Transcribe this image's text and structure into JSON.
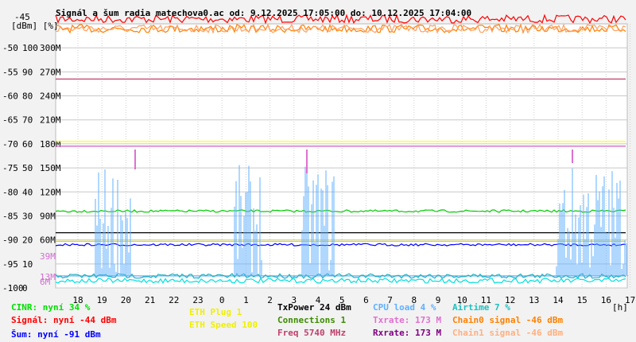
{
  "title": "Signál a šum radia matechova0.ac od: 9.12.2025 17:05:00 do: 10.12.2025 17:04:00",
  "chart_data": {
    "type": "line",
    "title": "Signál a šum radia matechova0.ac od: 9.12.2025 17:05:00 do: 10.12.2025 17:04:00",
    "xlabel": "[h]",
    "x_ticks": [
      "18",
      "19",
      "20",
      "21",
      "22",
      "23",
      "0",
      "1",
      "2",
      "3",
      "4",
      "5",
      "6",
      "7",
      "8",
      "9",
      "10",
      "11",
      "12",
      "13",
      "14",
      "15",
      "16",
      "17"
    ],
    "y_axis_headers": [
      "-45",
      "[dBm]",
      "[%]"
    ],
    "y_ticks_dbm": [
      "-50",
      "-55",
      "-60",
      "-65",
      "-70",
      "-75",
      "-80",
      "-85",
      "-90",
      "-95",
      "-100"
    ],
    "y_ticks_pct": [
      "100",
      "90",
      "80",
      "70",
      "60",
      "50",
      "40",
      "30",
      "20",
      "10",
      "0"
    ],
    "y_ticks_rate": [
      "300M",
      "270M",
      "240M",
      "210M",
      "180M",
      "150M",
      "120M",
      "90M",
      "60M"
    ],
    "y_ticks_extra": [
      "39M",
      "13M",
      "6M"
    ],
    "ylim_dbm": [
      -100,
      -45
    ],
    "grid": true,
    "series": [
      {
        "name": "Signál",
        "color": "#ff0000",
        "level_dbm": -44
      },
      {
        "name": "Chain0 signal",
        "color": "#ff8000",
        "level_dbm": -46
      },
      {
        "name": "Chain1 signal",
        "color": "#ffa060",
        "level_dbm": -46
      },
      {
        "name": "Freq",
        "color": "#c0406a",
        "level_dbm": -56.5
      },
      {
        "name": "Rxrate",
        "color": "#800080",
        "level_dbm": -70.5
      },
      {
        "name": "Txrate",
        "color": "#e070d0",
        "level_dbm": -70.5
      },
      {
        "name": "ETH Speed",
        "color": "#ffff00",
        "level_dbm": -69.5
      },
      {
        "name": "ETH Plug",
        "color": "#d8d800",
        "level_dbm": -90.3
      },
      {
        "name": "Connections",
        "color": "#00cc00",
        "level_dbm": -84
      },
      {
        "name": "TxPower",
        "color": "#000000",
        "level_dbm": -88.5
      },
      {
        "name": "Šum",
        "color": "#0000ff",
        "level_dbm": -91
      },
      {
        "name": "CPU load",
        "color": "#60b0ff",
        "level_dbm": -97.5
      },
      {
        "name": "CINR",
        "color": "#00e0e0",
        "level_dbm": -98.5
      },
      {
        "name": "Airtime",
        "color": "#20b0c0",
        "level_dbm": -97.5
      }
    ]
  },
  "legend": {
    "cinr": "CINR: nyní 34 %",
    "signal": "Signál: nyní -44 dBm",
    "sum": "Šum: nyní -91 dBm",
    "eth_plug": "ETH Plug 1",
    "eth_speed": "ETH Speed 100",
    "txpower": "TxPower 24 dBm",
    "connections": "Connections 1",
    "freq": "Freq 5740 MHz",
    "cpu": "CPU load 4 %",
    "txrate": "Txrate: 173 M",
    "rxrate": "Rxrate: 173 M",
    "airtime": "Airtime 7 %",
    "chain0": "Chain0 signal -46 dBm",
    "chain1": "Chain1 signal -46 dBm"
  },
  "colors": {
    "cinr": "#00e000",
    "signal": "#ff0000",
    "sum": "#0000ff",
    "eth": "#f0f000",
    "txpower": "#000000",
    "connections": "#3c8c00",
    "freq": "#c0406a",
    "cpu": "#60b0ff",
    "txrate": "#e070d0",
    "rxrate": "#800080",
    "airtime": "#20c0c0",
    "chain0": "#ff8000",
    "chain1": "#ffb080"
  }
}
